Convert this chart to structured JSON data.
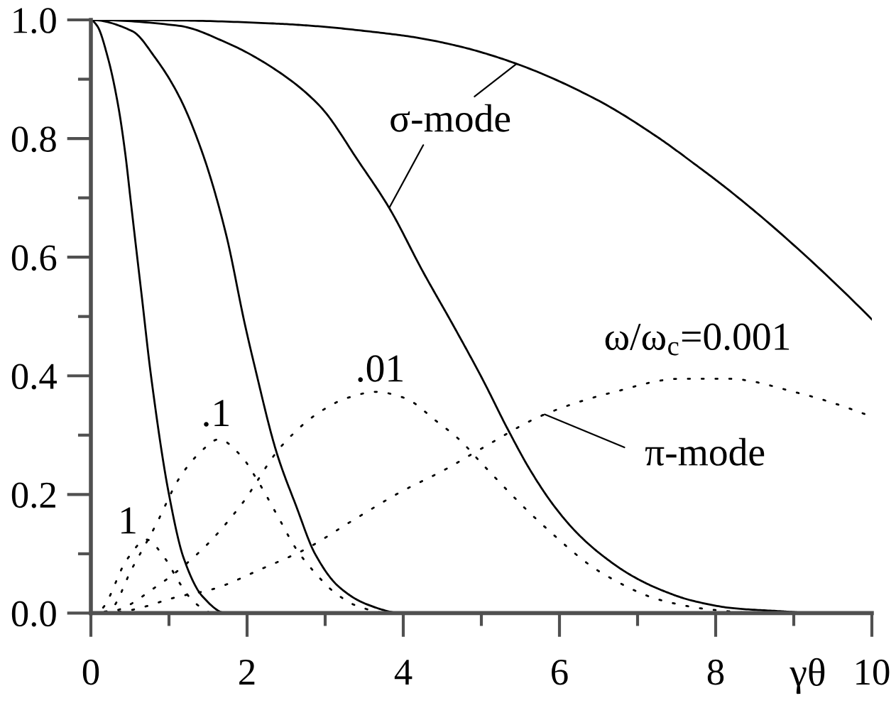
{
  "chart_data": {
    "type": "line",
    "xlabel": "γθ",
    "xlim": [
      0,
      10
    ],
    "xticks": [
      0,
      2,
      4,
      6,
      8,
      10
    ],
    "ylim": [
      0,
      1
    ],
    "yticks": [
      {
        "value": 0,
        "label": "0.0"
      },
      {
        "value": 0.2,
        "label": "0.2"
      },
      {
        "value": 0.4,
        "label": "0.4"
      },
      {
        "value": 0.6,
        "label": "0.6"
      },
      {
        "value": 0.8,
        "label": "0.8"
      },
      {
        "value": 1,
        "label": "1.0"
      }
    ],
    "series": [
      {
        "color": "#000000",
        "line_style": "solid",
        "x": [
          0,
          0.08,
          0.22,
          0.35,
          0.44,
          0.51,
          0.58,
          0.65,
          0.77,
          1.0,
          1.19,
          1.43,
          1.73
        ],
        "values": [
          1,
          0.99,
          0.935,
          0.855,
          0.775,
          0.695,
          0.615,
          0.536,
          0.4,
          0.2,
          0.092,
          0.028,
          0
        ]
      },
      {
        "color": "#000000",
        "line_style": "solid",
        "x": [
          0,
          0.53,
          0.83,
          1.13,
          1.43,
          1.73,
          1.97,
          2.09,
          2.38,
          2.63,
          2.87,
          3.17,
          3.53,
          3.95
        ],
        "values": [
          1,
          0.981,
          0.935,
          0.871,
          0.775,
          0.639,
          0.488,
          0.42,
          0.27,
          0.18,
          0.1,
          0.045,
          0.015,
          0
        ]
      },
      {
        "color": "#000000",
        "line_style": "solid",
        "x": [
          0,
          1.13,
          1.73,
          2.33,
          2.93,
          3.44,
          3.82,
          4.25,
          4.64,
          5.02,
          5.33,
          5.63,
          5.94,
          6.24,
          6.55,
          6.94,
          7.32,
          7.7,
          8.24,
          8.85,
          9.2
        ],
        "values": [
          1,
          0.99,
          0.962,
          0.919,
          0.855,
          0.759,
          0.683,
          0.576,
          0.485,
          0.393,
          0.312,
          0.24,
          0.179,
          0.133,
          0.097,
          0.062,
          0.038,
          0.021,
          0.008,
          0.003,
          0
        ]
      },
      {
        "color": "#000000",
        "line_style": "solid",
        "x": [
          0,
          1.13,
          2.33,
          2.93,
          3.53,
          4.13,
          4.73,
          5.45,
          6.47,
          7.26,
          7.7,
          8.16,
          8.85,
          10
        ],
        "values": [
          1,
          0.999,
          0.994,
          0.989,
          0.981,
          0.971,
          0.955,
          0.926,
          0.866,
          0.802,
          0.76,
          0.714,
          0.638,
          0.495
        ]
      },
      {
        "color": "#000000",
        "line_style": "dotted",
        "x": [
          0,
          0.11,
          0.47,
          0.71,
          0.95,
          1.13,
          1.31,
          1.55
        ],
        "values": [
          0,
          0.004,
          0.092,
          0.124,
          0.092,
          0.052,
          0.02,
          0
        ]
      },
      {
        "color": "#000000",
        "line_style": "dotted",
        "x": [
          0,
          0.23,
          0.53,
          0.83,
          1.13,
          1.37,
          1.64,
          1.91,
          2.15,
          2.39,
          2.63,
          2.87,
          3.11,
          3.41,
          3.8
        ],
        "values": [
          0,
          0.004,
          0.076,
          0.148,
          0.227,
          0.267,
          0.293,
          0.267,
          0.22,
          0.164,
          0.108,
          0.068,
          0.036,
          0.012,
          0
        ]
      },
      {
        "color": "#000000",
        "line_style": "dotted",
        "x": [
          0,
          0.3,
          0.83,
          1.43,
          1.91,
          2.45,
          2.93,
          3.29,
          3.65,
          4.01,
          4.43,
          4.73,
          5.02,
          5.79,
          6.55,
          7.32,
          8.0,
          8.6
        ],
        "values": [
          0,
          0.004,
          0.044,
          0.108,
          0.18,
          0.283,
          0.339,
          0.363,
          0.373,
          0.363,
          0.323,
          0.291,
          0.25,
          0.148,
          0.067,
          0.021,
          0.005,
          0
        ]
      },
      {
        "color": "#000000",
        "line_style": "dotted",
        "x": [
          0,
          0.4,
          1.13,
          1.55,
          2.21,
          2.75,
          3.35,
          3.95,
          4.55,
          4.97,
          5.81,
          6.65,
          7.55,
          8.16,
          9.06,
          10
        ],
        "values": [
          0,
          0.003,
          0.028,
          0.04,
          0.076,
          0.108,
          0.156,
          0.203,
          0.243,
          0.275,
          0.335,
          0.371,
          0.395,
          0.395,
          0.371,
          0.331
        ]
      }
    ],
    "annotations": [
      {
        "text": "σ-mode",
        "x": 5.45,
        "y": 0.926
      },
      {
        "text": "π-mode",
        "x": 5.81,
        "y": 0.335
      },
      {
        "text": "1",
        "x": 0.71,
        "y": 0.124
      },
      {
        "text": ".1",
        "x": 1.64,
        "y": 0.293
      },
      {
        "text": ".01",
        "x": 3.65,
        "y": 0.373
      },
      {
        "text": "ω/ω$_{c}$=0.001",
        "x": 7.55,
        "y": 0.395
      }
    ]
  }
}
